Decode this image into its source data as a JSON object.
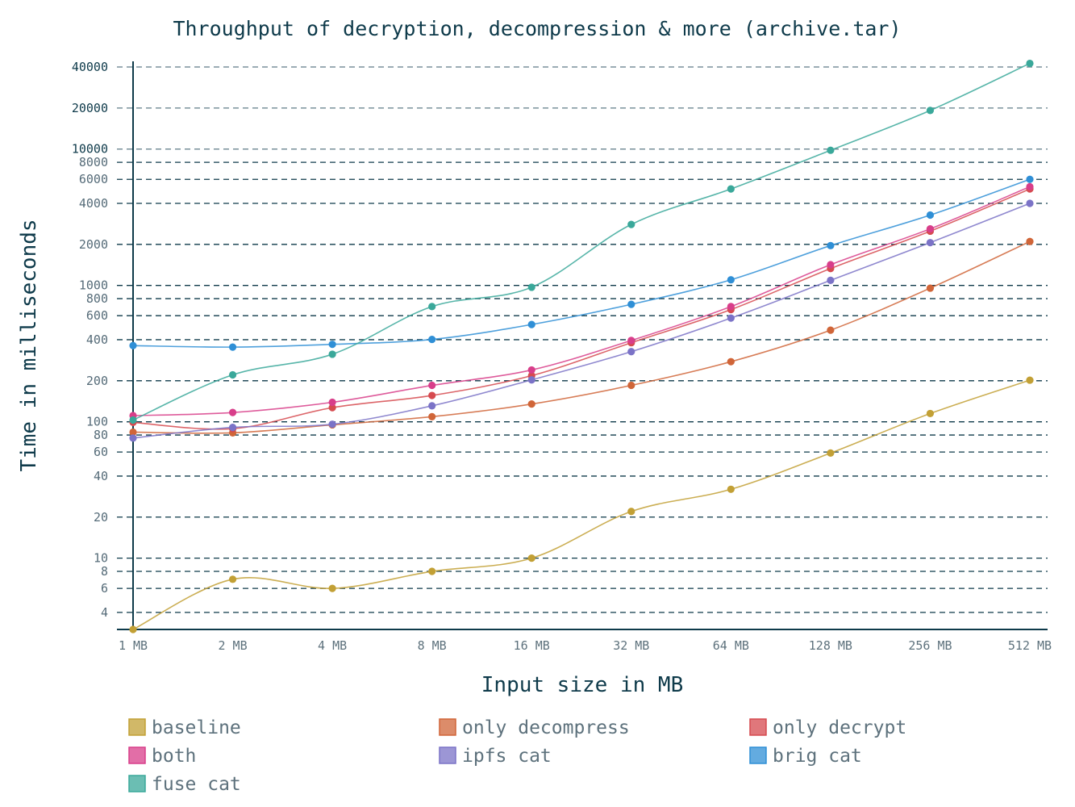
{
  "chart_data": {
    "type": "line",
    "title": "Throughput of decryption, decompression & more (archive.tar)",
    "xlabel": "Input size in MB",
    "ylabel": "Time in milliseconds",
    "y_scale": "log",
    "ylim": [
      3,
      44000
    ],
    "categories": [
      "1 MB",
      "2 MB",
      "4 MB",
      "8 MB",
      "16 MB",
      "32 MB",
      "64 MB",
      "128 MB",
      "256 MB",
      "512 MB"
    ],
    "y_ticks": [
      4,
      6,
      8,
      10,
      20,
      40,
      60,
      80,
      100,
      200,
      400,
      600,
      800,
      1000,
      2000,
      4000,
      6000,
      8000,
      10000,
      20000,
      40000
    ],
    "y_tick_labels": [
      "4",
      "6",
      "8",
      "10",
      "20",
      "40",
      "60",
      "80",
      "100",
      "200",
      "400",
      "600",
      "800",
      "1000",
      "2000",
      "4000",
      "6000",
      "8000",
      "10000",
      "20000",
      "40000"
    ],
    "grid": true,
    "legend_position": "bottom",
    "series": [
      {
        "name": "baseline",
        "color": "#c2a035",
        "values": [
          3,
          7,
          6,
          8,
          10,
          22,
          32,
          59,
          115,
          202
        ]
      },
      {
        "name": "only decompress",
        "color": "#d06538",
        "values": [
          84,
          83,
          95,
          109,
          135,
          185,
          276,
          470,
          955,
          2100
        ]
      },
      {
        "name": "only decrypt",
        "color": "#d64a4f",
        "values": [
          99,
          89,
          127,
          156,
          218,
          380,
          665,
          1330,
          2500,
          5100
        ]
      },
      {
        "name": "both",
        "color": "#d83e8a",
        "values": [
          111,
          117,
          139,
          185,
          240,
          395,
          700,
          1420,
          2600,
          5300
        ]
      },
      {
        "name": "ipfs cat",
        "color": "#7b73c7",
        "values": [
          76,
          91,
          96,
          131,
          203,
          327,
          576,
          1090,
          2060,
          4000
        ]
      },
      {
        "name": "brig cat",
        "color": "#2f8fd6",
        "values": [
          362,
          353,
          370,
          402,
          517,
          727,
          1100,
          1960,
          3280,
          6000
        ]
      },
      {
        "name": "fuse cat",
        "color": "#3aa89a",
        "values": [
          103,
          221,
          313,
          700,
          970,
          2800,
          5100,
          9800,
          19200,
          42500
        ]
      }
    ]
  }
}
